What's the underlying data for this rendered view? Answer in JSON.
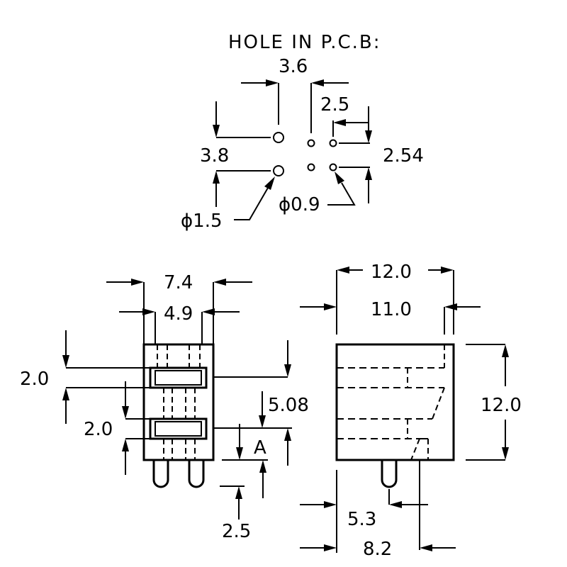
{
  "pcb": {
    "title": "HOLE IN P.C.B:",
    "dim_3_6": "3.6",
    "dim_2_5": "2.5",
    "dim_3_8": "3.8",
    "dim_2_54": "2.54",
    "dim_hole_large": "ϕ1.5",
    "dim_hole_small": "ϕ0.9"
  },
  "front_view": {
    "dim_7_4": "7.4",
    "dim_4_9": "4.9",
    "dim_2_0_top": "2.0",
    "dim_2_0_bottom": "2.0",
    "dim_5_08": "5.08",
    "label_A": "A",
    "dim_2_5": "2.5"
  },
  "side_view": {
    "dim_12_0_width": "12.0",
    "dim_11_0": "11.0",
    "dim_12_0_height": "12.0",
    "dim_5_3": "5.3",
    "dim_8_2": "8.2"
  }
}
